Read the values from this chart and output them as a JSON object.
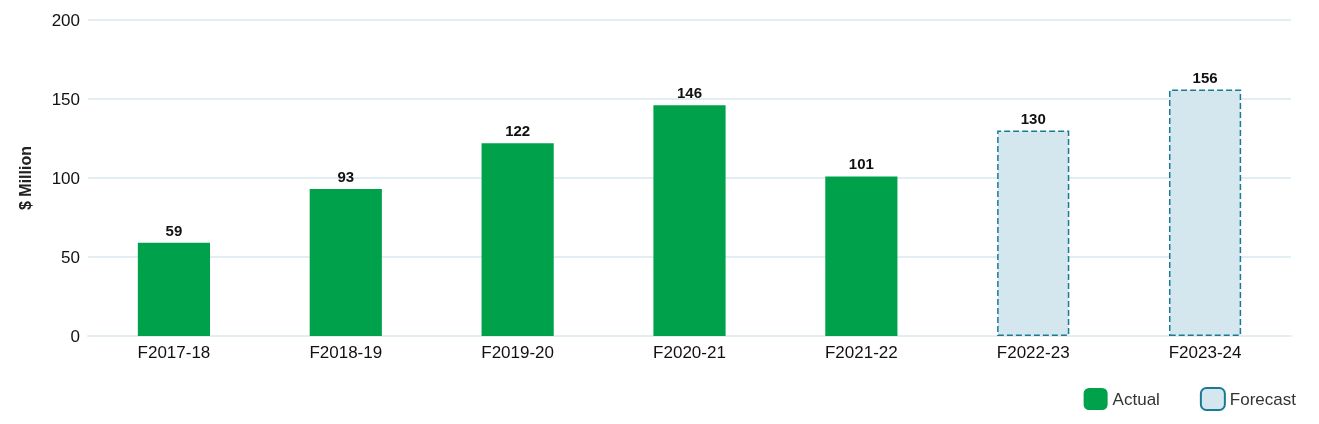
{
  "chart_data": {
    "type": "bar",
    "ylabel": "$ Million",
    "categories": [
      "F2017-18",
      "F2018-19",
      "F2019-20",
      "F2020-21",
      "F2021-22",
      "F2022-23",
      "F2023-24"
    ],
    "series": [
      {
        "name": "Actual",
        "color": "#00a14b",
        "values": [
          59,
          93,
          122,
          146,
          101,
          null,
          null
        ]
      },
      {
        "name": "Forecast",
        "color": "#d4e6ee",
        "line_style": "dashed",
        "values": [
          null,
          null,
          null,
          null,
          null,
          130,
          156
        ]
      }
    ],
    "ylim": [
      0,
      200
    ],
    "yticks": [
      0,
      50,
      100,
      150,
      200
    ],
    "grid": "y",
    "legend": "bottom right",
    "data_labels": true
  }
}
